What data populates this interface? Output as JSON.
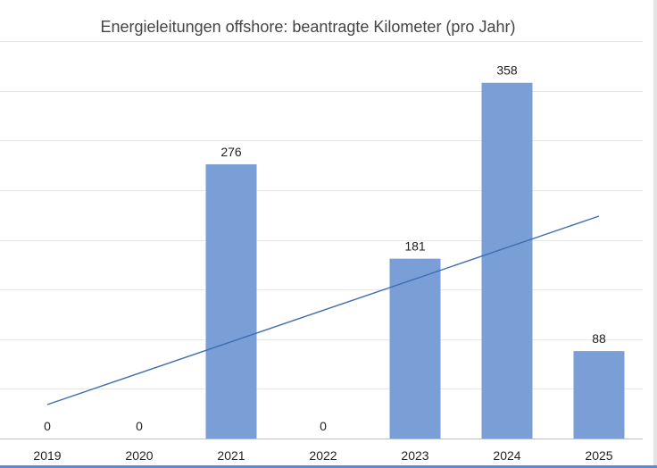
{
  "chart_data": {
    "type": "bar",
    "title": "Energieleitungen offshore: beantragte Kilometer (pro Jahr)",
    "categories": [
      "2019",
      "2020",
      "2021",
      "2022",
      "2023",
      "2024",
      "2025"
    ],
    "series": [
      {
        "values": [
          0,
          0,
          276,
          0,
          181,
          358,
          88
        ],
        "color": "#7a9fd6"
      }
    ],
    "data_labels": [
      "0",
      "0",
      "276",
      "0",
      "181",
      "358",
      "88"
    ],
    "trendline": {
      "type": "linear",
      "color": "#3d6cb0"
    },
    "xlabel": "",
    "ylabel": "",
    "ylim": [
      0,
      400
    ],
    "grid": true,
    "legend": "none"
  },
  "colors": {
    "bar": "#7a9fd6",
    "trendline": "#3d6cb0",
    "grid": "#e6e6e6",
    "axis": "#bfbfbf",
    "title": "#444444"
  }
}
